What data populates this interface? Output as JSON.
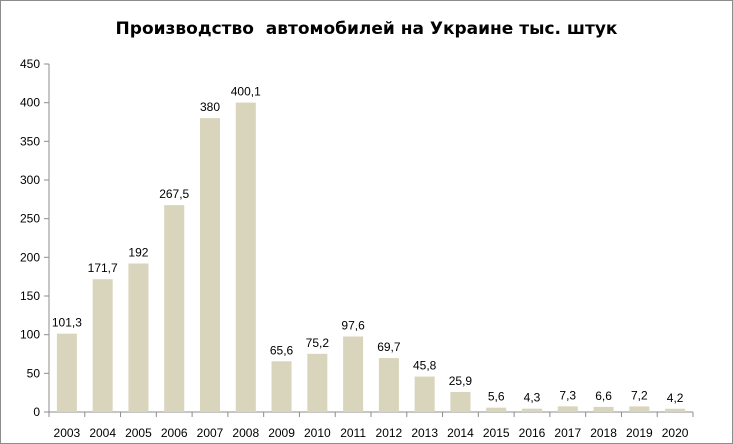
{
  "chart_data": {
    "type": "bar",
    "title": "Производство  автомобилей на Украине тыс. штук",
    "categories": [
      "2003",
      "2004",
      "2005",
      "2006",
      "2007",
      "2008",
      "2009",
      "2010",
      "2011",
      "2012",
      "2013",
      "2014",
      "2015",
      "2016",
      "2017",
      "2018",
      "2019",
      "2020"
    ],
    "values": [
      101.3,
      171.7,
      192,
      267.5,
      380,
      400.1,
      65.6,
      75.2,
      97.6,
      69.7,
      45.8,
      25.9,
      5.6,
      4.3,
      7.3,
      6.6,
      7.2,
      4.2
    ],
    "data_labels": [
      "101,3",
      "171,7",
      "192",
      "267,5",
      "380",
      "400,1",
      "65,6",
      "75,2",
      "97,6",
      "69,7",
      "45,8",
      "25,9",
      "5,6",
      "4,3",
      "7,3",
      "6,6",
      "7,2",
      "4,2"
    ],
    "ylim": [
      0,
      450
    ],
    "yticks": [
      0,
      50,
      100,
      150,
      200,
      250,
      300,
      350,
      400,
      450
    ],
    "xlabel": "",
    "ylabel": "",
    "grid": false,
    "legend": "none",
    "bar_color": "#d9d4bc",
    "axis_color": "#8c8c8c"
  }
}
